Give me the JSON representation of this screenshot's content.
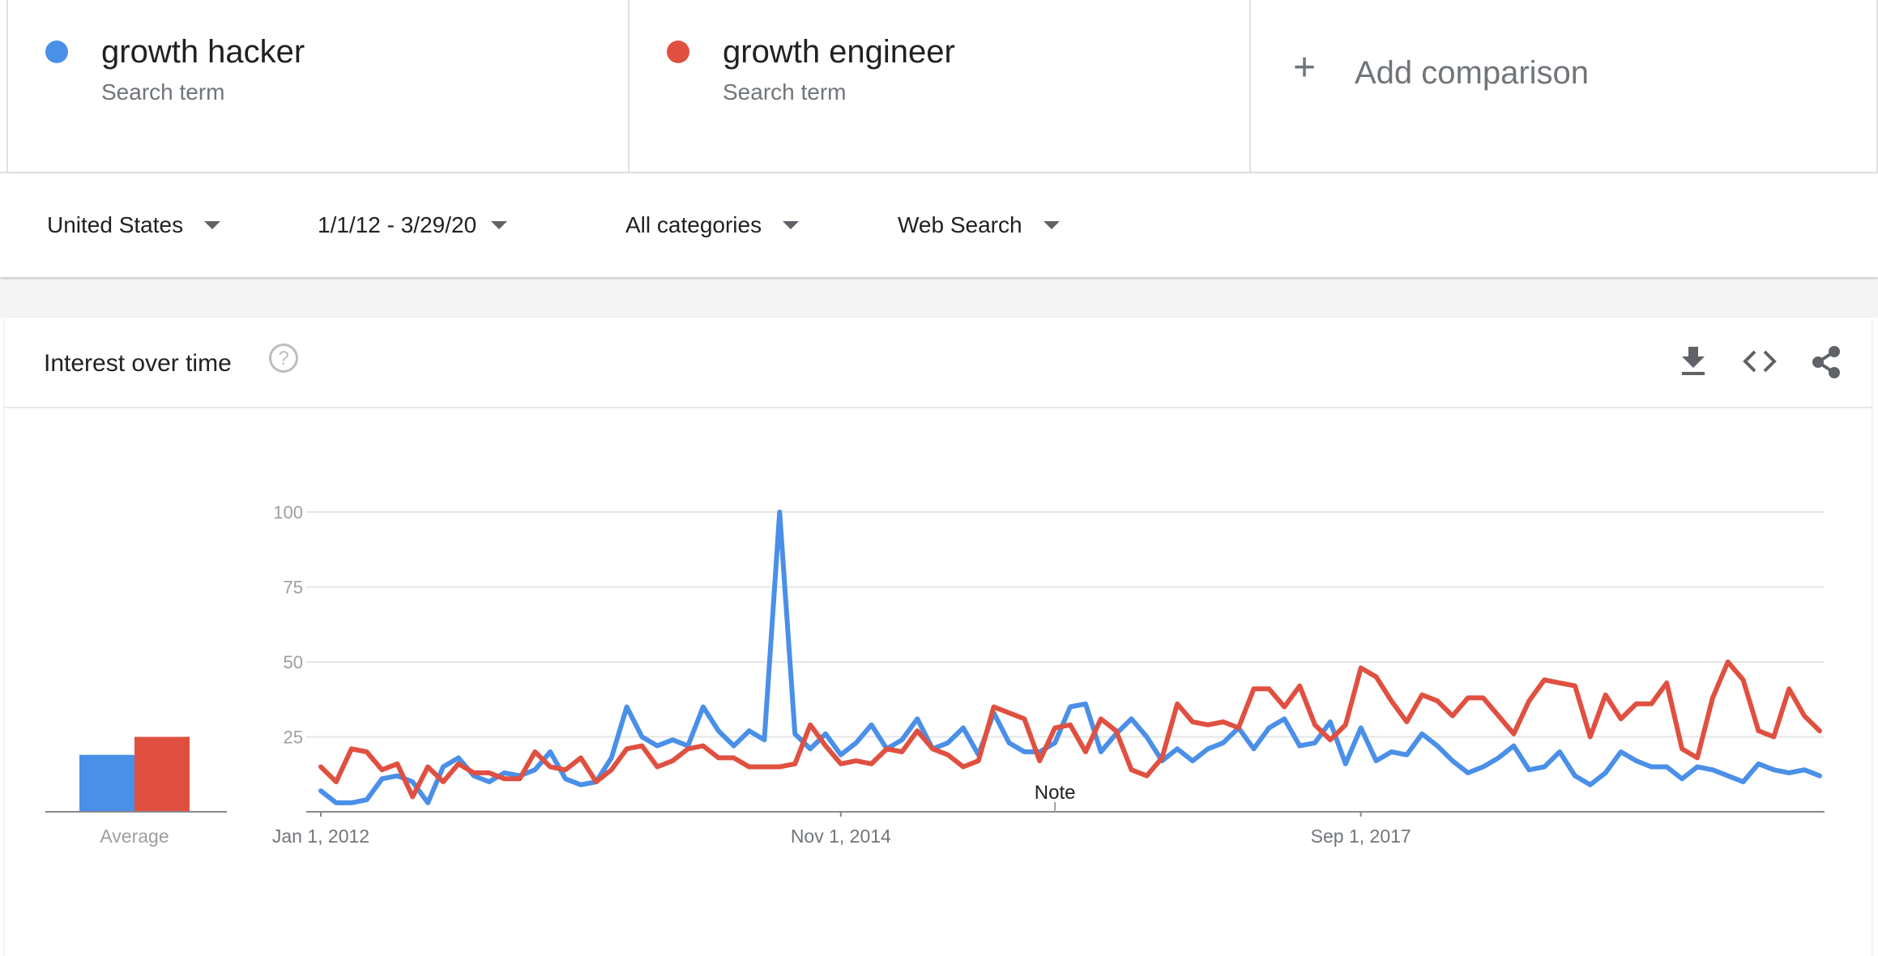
{
  "terms": [
    {
      "name": "growth hacker",
      "sub": "Search term",
      "color": "#4a8fe8"
    },
    {
      "name": "growth engineer",
      "sub": "Search term",
      "color": "#e05040"
    }
  ],
  "add_comparison": {
    "plus": "+",
    "label": "Add comparison"
  },
  "filters": {
    "region": "United States",
    "date_range": "1/1/12 - 3/29/20",
    "category": "All categories",
    "search_type": "Web Search"
  },
  "card": {
    "title": "Interest over time",
    "help_glyph": "?",
    "icons": [
      "download-icon",
      "embed-icon",
      "share-icon"
    ]
  },
  "chart_data": {
    "type": "line",
    "ylim": [
      0,
      100
    ],
    "yticks": [
      "100",
      "75",
      "50",
      "25"
    ],
    "xtick_labels": [
      {
        "label": "Jan 1, 2012",
        "index": 0
      },
      {
        "label": "Nov 1, 2014",
        "index": 34
      },
      {
        "label": "Sep 1, 2017",
        "index": 68
      }
    ],
    "note": {
      "label": "Note",
      "index": 48
    },
    "average": {
      "label": "Average",
      "values": [
        19,
        25
      ]
    },
    "grid": true,
    "series": [
      {
        "name": "growth hacker",
        "color": "#4a8fe8",
        "values": [
          7,
          3,
          3,
          4,
          11,
          12,
          10,
          3,
          15,
          18,
          12,
          10,
          13,
          12,
          14,
          20,
          11,
          9,
          10,
          18,
          35,
          25,
          22,
          24,
          22,
          35,
          27,
          22,
          27,
          24,
          100,
          26,
          21,
          26,
          19,
          23,
          29,
          21,
          24,
          31,
          21,
          23,
          28,
          19,
          33,
          23,
          20,
          20,
          23,
          35,
          36,
          20,
          26,
          31,
          25,
          17,
          21,
          17,
          21,
          23,
          28,
          21,
          28,
          31,
          22,
          23,
          30,
          16,
          28,
          17,
          20,
          19,
          26,
          22,
          17,
          13,
          15,
          18,
          22,
          14,
          15,
          20,
          12,
          9,
          13,
          20,
          17,
          15,
          15,
          11,
          15,
          14,
          12,
          10,
          16,
          14,
          13,
          14,
          12
        ]
      },
      {
        "name": "growth engineer",
        "color": "#e05040",
        "values": [
          15,
          10,
          21,
          20,
          14,
          16,
          5,
          15,
          10,
          16,
          13,
          13,
          11,
          11,
          20,
          15,
          14,
          18,
          10,
          14,
          21,
          22,
          15,
          17,
          21,
          22,
          18,
          18,
          15,
          15,
          15,
          16,
          29,
          22,
          16,
          17,
          16,
          21,
          20,
          27,
          21,
          19,
          15,
          17,
          35,
          33,
          31,
          17,
          28,
          29,
          20,
          31,
          27,
          14,
          12,
          18,
          36,
          30,
          29,
          30,
          28,
          41,
          41,
          35,
          42,
          29,
          24,
          29,
          48,
          45,
          37,
          30,
          39,
          37,
          32,
          38,
          38,
          32,
          26,
          37,
          44,
          43,
          42,
          25,
          39,
          31,
          36,
          36,
          43,
          21,
          18,
          38,
          50,
          44,
          27,
          25,
          41,
          32,
          27
        ]
      }
    ]
  }
}
